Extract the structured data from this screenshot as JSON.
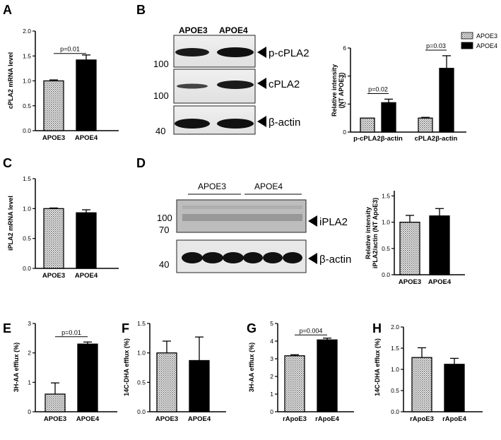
{
  "panel_letters": {
    "A": "A",
    "B": "B",
    "C": "C",
    "D": "D",
    "E": "E",
    "F": "F",
    "G": "G",
    "H": "H"
  },
  "colors": {
    "apoe3_fill": "#d9d9d9",
    "apoe4_fill": "#000000",
    "axis": "#000000",
    "blot_bg": "#e8e8e8",
    "band": "#1a1a1a"
  },
  "blot_B": {
    "lanes": [
      "APOE3",
      "APOE4"
    ],
    "markers": [
      "100",
      "100",
      "40"
    ],
    "labels": [
      "p-cPLA2",
      "cPLA2",
      "β-actin"
    ]
  },
  "blot_D": {
    "lanes": [
      "APOE3",
      "APOE4"
    ],
    "markers": [
      "100",
      "70",
      "40"
    ],
    "labels": [
      "iPLA2",
      "β-actin"
    ]
  },
  "chart_data": [
    {
      "id": "A",
      "type": "bar",
      "categories": [
        "APOE3",
        "APOE4"
      ],
      "values": [
        1.0,
        1.42
      ],
      "errors": [
        0.02,
        0.1
      ],
      "ylabel": "cPLA2 mRNA level",
      "ylim": [
        0,
        2.0
      ],
      "yticks": [
        "0.0",
        "0.5",
        "1.0",
        "1.5",
        "2.0"
      ],
      "annotation": "p=0.01"
    },
    {
      "id": "B",
      "type": "bar",
      "categories": [
        "p-cPLA2β-actin",
        "cPLA2β-actin"
      ],
      "series": [
        {
          "name": "APOE3",
          "values": [
            1.0,
            1.0
          ],
          "errors": [
            0.0,
            0.05
          ]
        },
        {
          "name": "APOE4",
          "values": [
            2.1,
            4.55
          ],
          "errors": [
            0.25,
            0.9
          ]
        }
      ],
      "ylabel": "Relative intensity (NT APOE3)",
      "ylim": [
        0,
        6
      ],
      "yticks": [
        "0",
        "2",
        "4",
        "6"
      ],
      "annotations": [
        "p=0.02",
        "p=0.03"
      ],
      "legend": "top-right"
    },
    {
      "id": "C",
      "type": "bar",
      "categories": [
        "APOE3",
        "APOE4"
      ],
      "values": [
        1.0,
        0.93
      ],
      "errors": [
        0.01,
        0.05
      ],
      "ylabel": "iPLA2 mRNA level",
      "ylim": [
        0,
        1.5
      ],
      "yticks": [
        "0.0",
        "0.5",
        "1.0",
        "1.5"
      ]
    },
    {
      "id": "D",
      "type": "bar",
      "categories": [
        "APOE3",
        "APOE4"
      ],
      "values": [
        1.0,
        1.12
      ],
      "errors": [
        0.13,
        0.14
      ],
      "ylabel": "Relative intensity iPLA2/actin (NT ApoE3)",
      "ylim": [
        0,
        1.6
      ],
      "yticks": [
        "0.0",
        "0.5",
        "1.0",
        "1.5"
      ]
    },
    {
      "id": "E",
      "type": "bar",
      "categories": [
        "APOE3",
        "APOE4"
      ],
      "values": [
        0.6,
        2.3
      ],
      "errors": [
        0.38,
        0.07
      ],
      "ylabel": "3H-AA efflux (%)",
      "ylim": [
        0,
        3
      ],
      "yticks": [
        "0",
        "1",
        "2",
        "3"
      ],
      "annotation": "p=0.01"
    },
    {
      "id": "F",
      "type": "bar",
      "categories": [
        "APOE3",
        "APOE4"
      ],
      "values": [
        1.0,
        0.87
      ],
      "errors": [
        0.2,
        0.4
      ],
      "ylabel": "14C-DHA efflux (%)",
      "ylim": [
        0,
        1.5
      ],
      "yticks": [
        "0.0",
        "0.5",
        "1.0",
        "1.5"
      ]
    },
    {
      "id": "G",
      "type": "bar",
      "categories": [
        "rApoE3",
        "rApoE4"
      ],
      "values": [
        3.17,
        4.07
      ],
      "errors": [
        0.06,
        0.1
      ],
      "ylabel": "3H-AA efflux (%)",
      "ylim": [
        0,
        5
      ],
      "yticks": [
        "0",
        "1",
        "2",
        "3",
        "4",
        "5"
      ],
      "annotation": "p=0.004"
    },
    {
      "id": "H",
      "type": "bar",
      "categories": [
        "rApoE3",
        "rApoE4"
      ],
      "values": [
        1.28,
        1.12
      ],
      "errors": [
        0.23,
        0.14
      ],
      "ylabel": "14C-DHA efflux (%)",
      "ylim": [
        0,
        2.0
      ],
      "yticks": [
        "0.0",
        "0.5",
        "1.0",
        "1.5",
        "2.0"
      ]
    }
  ]
}
